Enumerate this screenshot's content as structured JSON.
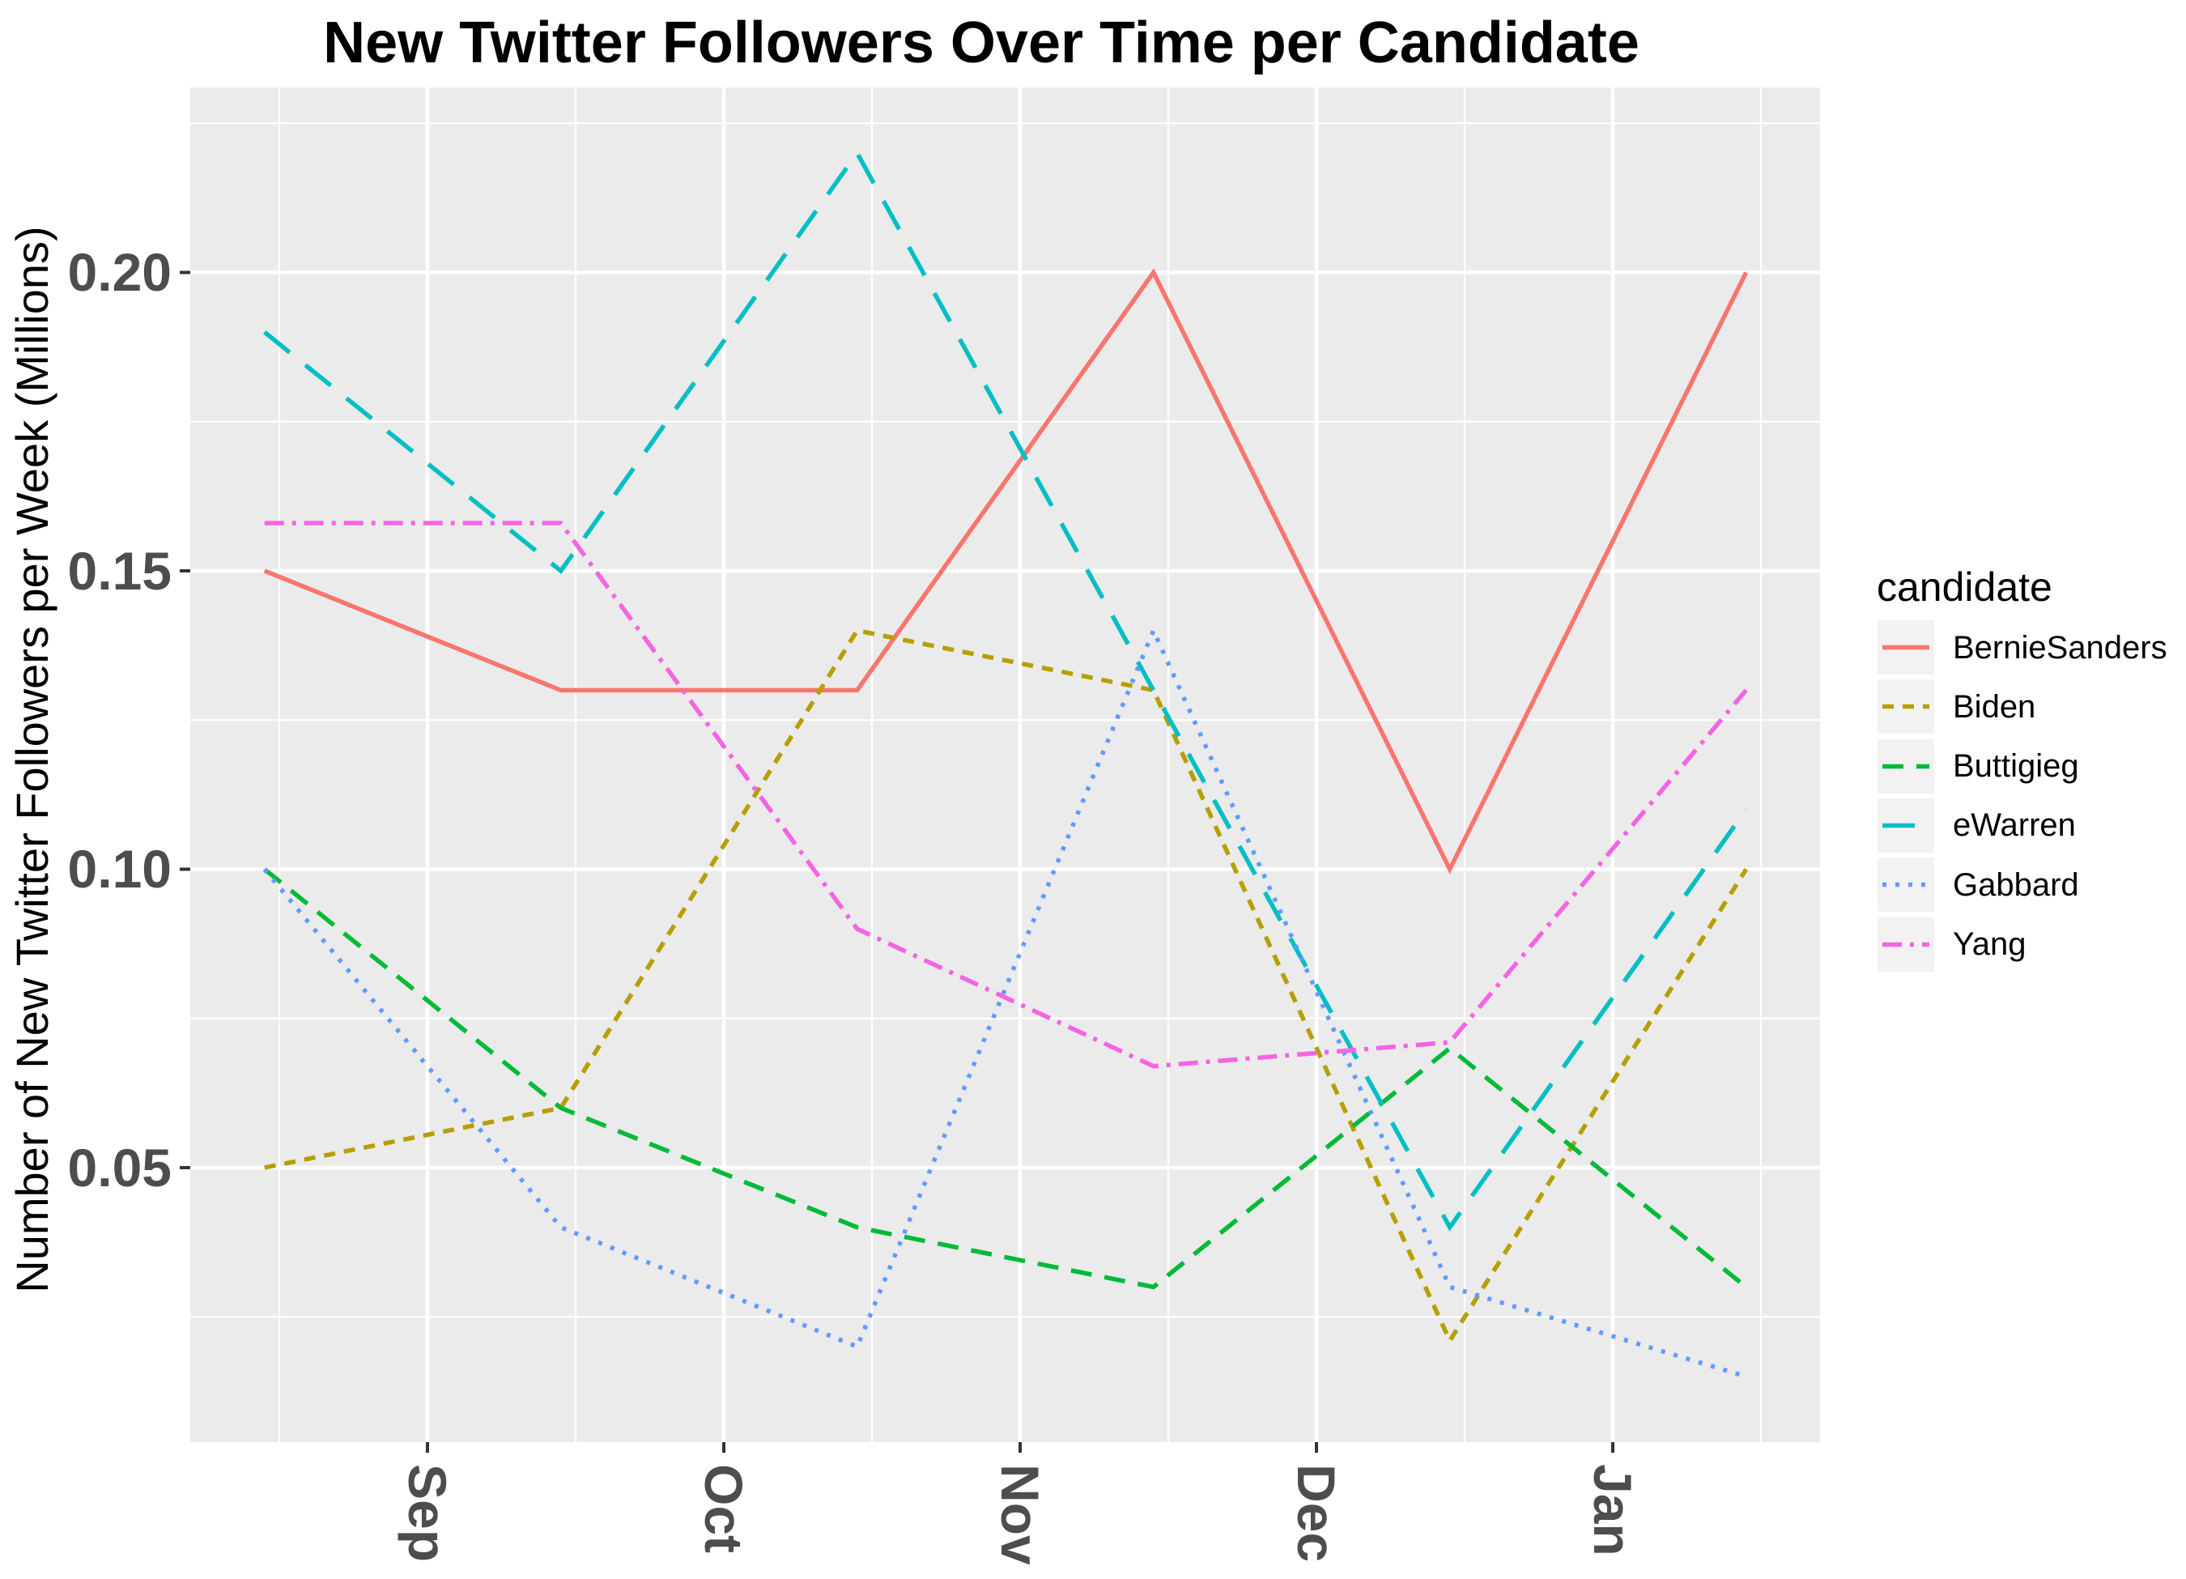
{
  "page": {
    "title": "New Twitter Followers Over Time per Candidate"
  },
  "y_axis": {
    "title": "Number of New Twitter Followers per Week (Millions)",
    "tick_labels": [
      "0.20",
      "0.15",
      "0.10",
      "0.05"
    ]
  },
  "x_axis": {
    "tick_labels": [
      "Sep",
      "Oct",
      "Nov",
      "Dec",
      "Jan"
    ]
  },
  "legend": {
    "title": "candidate",
    "entries": [
      "BernieSanders",
      "Biden",
      "Buttigieg",
      "eWarren",
      "Gabbard",
      "Yang"
    ]
  },
  "colors": {
    "panel_background": "#EBEBEB",
    "gridline": "#FFFFFF",
    "tick_mark": "#333333",
    "tick_text": "#4d4d4d",
    "legend_key_background": "#F2F2F2"
  },
  "chart_data": {
    "type": "line",
    "title": "New Twitter Followers Over Time per Candidate",
    "xlabel": "",
    "ylabel": "Number of New Twitter Followers per Week (Millions)",
    "x_tick_labels": [
      "Sep",
      "Oct",
      "Nov",
      "Dec",
      "Jan"
    ],
    "x_month_offsets": [
      -0.55,
      0.45,
      1.45,
      2.45,
      3.45,
      4.45
    ],
    "ylim": [
      0.004,
      0.231
    ],
    "y_major_ticks": [
      0.05,
      0.1,
      0.15,
      0.2
    ],
    "y_minor_ticks": [
      0.025,
      0.075,
      0.125,
      0.175,
      0.225
    ],
    "x_minor_offsets": [
      -0.5,
      0.5,
      1.5,
      2.5,
      3.5,
      4.5
    ],
    "grid": true,
    "legend_position": "right",
    "legend_title": "candidate",
    "series": [
      {
        "name": "BernieSanders",
        "color": "#F8766D",
        "linetype": "solid",
        "values": [
          0.15,
          0.13,
          0.13,
          0.2,
          0.1,
          0.2
        ]
      },
      {
        "name": "Biden",
        "color": "#B79F00",
        "linetype": "dashed",
        "values": [
          0.05,
          0.06,
          0.14,
          0.13,
          0.021,
          0.1
        ]
      },
      {
        "name": "Buttigieg",
        "color": "#00BA38",
        "linetype": "mediumdash",
        "values": [
          0.1,
          0.06,
          0.04,
          0.03,
          0.07,
          0.03
        ]
      },
      {
        "name": "eWarren",
        "color": "#00BFC4",
        "linetype": "longdash",
        "values": [
          0.19,
          0.15,
          0.22,
          0.13,
          0.04,
          0.11
        ]
      },
      {
        "name": "Gabbard",
        "color": "#619CFF",
        "linetype": "dotted",
        "values": [
          0.1,
          0.04,
          0.02,
          0.14,
          0.03,
          0.015
        ]
      },
      {
        "name": "Yang",
        "color": "#F564E3",
        "linetype": "dashdot",
        "values": [
          0.158,
          0.158,
          0.09,
          0.067,
          0.071,
          0.13
        ]
      }
    ]
  }
}
